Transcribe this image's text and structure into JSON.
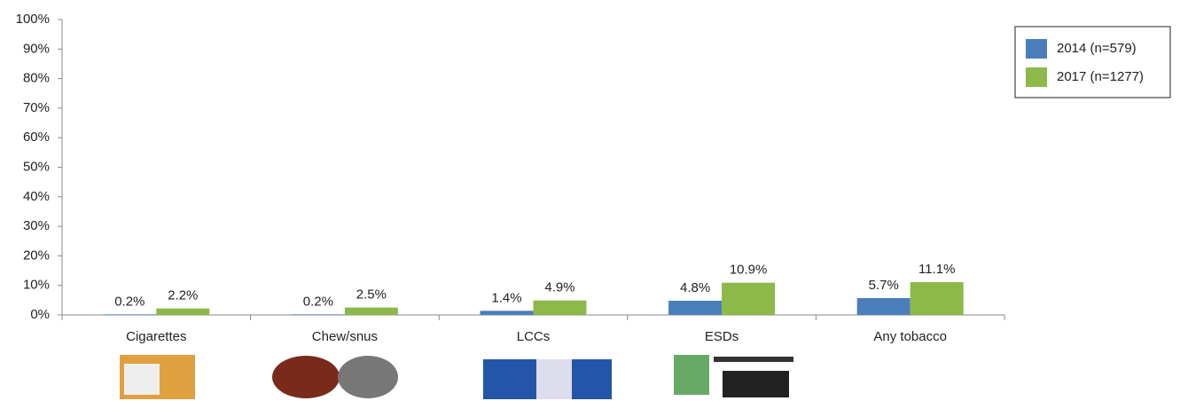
{
  "chart_data": {
    "type": "bar",
    "categories": [
      "Cigarettes",
      "Chew/snus",
      "LCCs",
      "ESDs",
      "Any tobacco"
    ],
    "series": [
      {
        "name": "2014 (n=579)",
        "color": "#4a7ebb",
        "values": [
          0.2,
          0.2,
          1.4,
          4.8,
          5.7
        ],
        "value_labels": [
          "0.2%",
          "0.2%",
          "1.4%",
          "4.8%",
          "5.7%"
        ]
      },
      {
        "name": "2017 (n=1277)",
        "color": "#8db84a",
        "values": [
          2.2,
          2.5,
          4.9,
          10.9,
          11.1
        ],
        "value_labels": [
          "2.2%",
          "2.5%",
          "4.9%",
          "10.9%",
          "11.1%"
        ]
      }
    ],
    "ylim": [
      0,
      100
    ],
    "yticks": [
      {
        "value": 0,
        "label": "0%"
      },
      {
        "value": 10,
        "label": "10%"
      },
      {
        "value": 20,
        "label": "20%"
      },
      {
        "value": 30,
        "label": "30%"
      },
      {
        "value": 40,
        "label": "40%"
      },
      {
        "value": 50,
        "label": "50%"
      },
      {
        "value": 60,
        "label": "60%"
      },
      {
        "value": 70,
        "label": "70%"
      },
      {
        "value": 80,
        "label": "80%"
      },
      {
        "value": 90,
        "label": "90%"
      },
      {
        "value": 100,
        "label": "100%"
      }
    ],
    "legend": "top-right"
  }
}
